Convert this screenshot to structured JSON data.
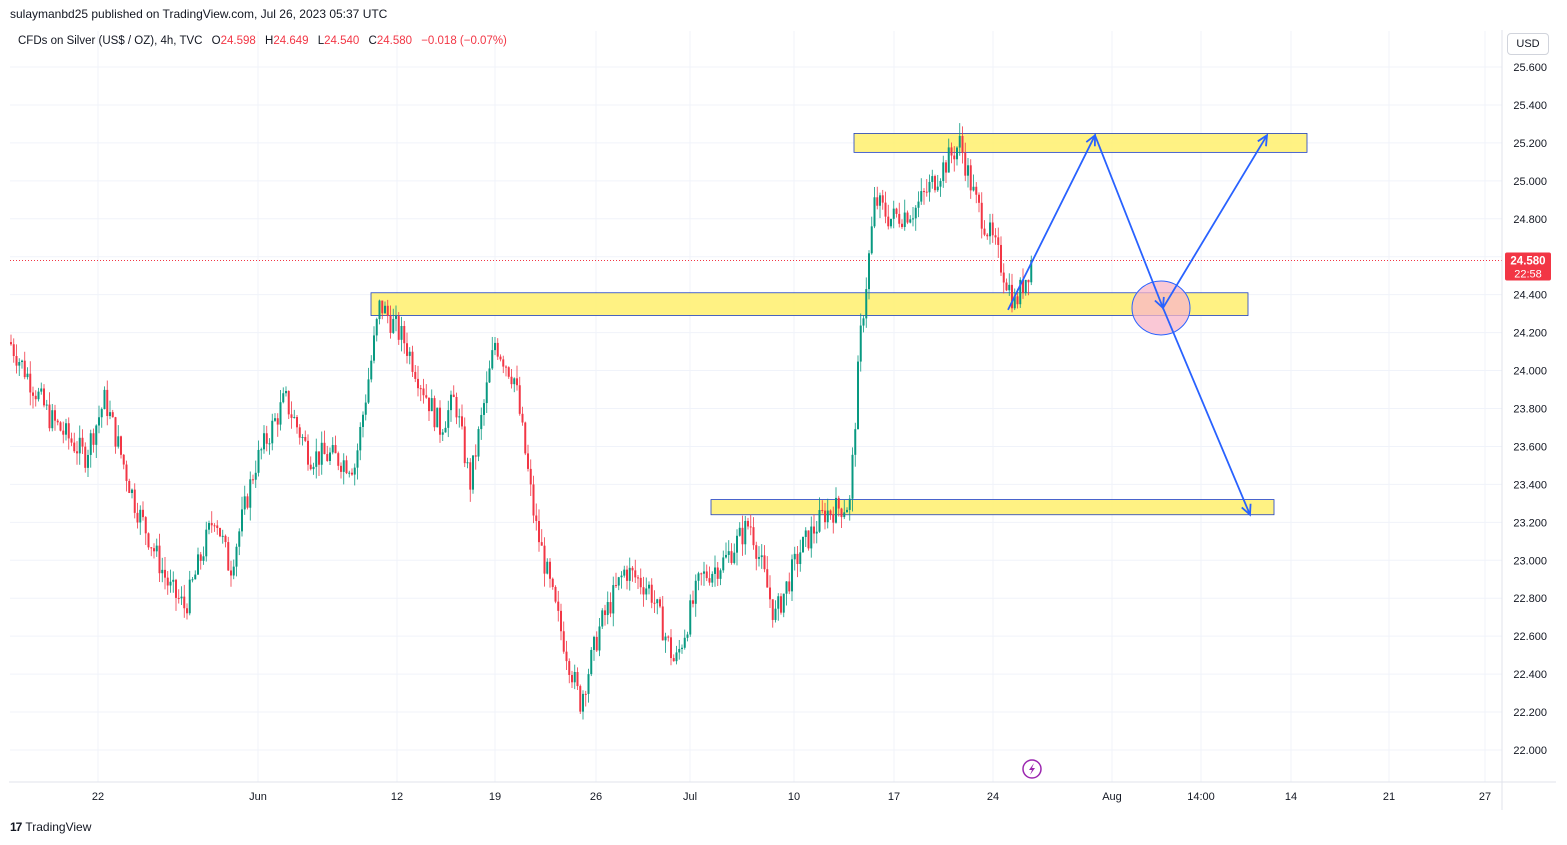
{
  "header": {
    "publisher_text": "sulaymanbd25 published on TradingView.com, Jul 26, 2023 05:37 UTC"
  },
  "legend": {
    "symbol": "CFDs on Silver (US$ / OZ), 4h, TVC",
    "open_label": "O",
    "open": "24.598",
    "high_label": "H",
    "high": "24.649",
    "low_label": "L",
    "low": "24.540",
    "close_label": "C",
    "close": "24.580",
    "change": "−0.018 (−0.07%)"
  },
  "toolbar": {
    "currency": "USD"
  },
  "price_badge": {
    "price": "24.580",
    "countdown": "22:58"
  },
  "footer": {
    "brand": "TradingView"
  },
  "colors": {
    "up": "#089981",
    "down": "#f23645",
    "zone_fill": "#fff176",
    "zone_border": "#1e3fc4",
    "arrow": "#2962ff",
    "ellipse_fill": "#f8b6c8"
  },
  "chart_data": {
    "type": "candlestick",
    "title": "CFDs on Silver (US$ / OZ), 4h, TVC",
    "interval": "4h",
    "y_axis": {
      "range": [
        21.85,
        25.75
      ],
      "ticks": [
        "25.600",
        "25.400",
        "25.200",
        "25.000",
        "24.800",
        "24.600",
        "24.400",
        "24.200",
        "24.000",
        "23.800",
        "23.600",
        "23.400",
        "23.200",
        "23.000",
        "22.800",
        "22.600",
        "22.400",
        "22.200",
        "22.000"
      ]
    },
    "x_axis": {
      "ticks": [
        "22",
        "Jun",
        "12",
        "19",
        "26",
        "Jul",
        "10",
        "17",
        "24",
        "Aug",
        "14:00",
        "14",
        "21",
        "27"
      ]
    },
    "grid": true,
    "current_price": 24.58,
    "price_path": [
      [
        0,
        24.15
      ],
      [
        40,
        23.75
      ],
      [
        75,
        23.55
      ],
      [
        95,
        23.85
      ],
      [
        125,
        23.3
      ],
      [
        160,
        22.85
      ],
      [
        175,
        22.75
      ],
      [
        205,
        23.25
      ],
      [
        220,
        22.95
      ],
      [
        245,
        23.5
      ],
      [
        275,
        23.85
      ],
      [
        300,
        23.55
      ],
      [
        320,
        23.55
      ],
      [
        345,
        23.5
      ],
      [
        370,
        24.35
      ],
      [
        395,
        24.15
      ],
      [
        410,
        23.95
      ],
      [
        430,
        23.7
      ],
      [
        445,
        23.85
      ],
      [
        460,
        23.4
      ],
      [
        485,
        24.15
      ],
      [
        505,
        23.95
      ],
      [
        525,
        23.2
      ],
      [
        545,
        22.75
      ],
      [
        570,
        22.25
      ],
      [
        590,
        22.65
      ],
      [
        615,
        22.95
      ],
      [
        640,
        22.85
      ],
      [
        665,
        22.45
      ],
      [
        690,
        22.9
      ],
      [
        715,
        23.0
      ],
      [
        740,
        23.2
      ],
      [
        765,
        22.7
      ],
      [
        790,
        23.05
      ],
      [
        815,
        23.25
      ],
      [
        840,
        23.3
      ],
      [
        850,
        24.15
      ],
      [
        865,
        24.9
      ],
      [
        880,
        24.8
      ],
      [
        905,
        24.85
      ],
      [
        930,
        25.05
      ],
      [
        950,
        25.2
      ],
      [
        965,
        24.9
      ],
      [
        985,
        24.65
      ],
      [
        1005,
        24.35
      ],
      [
        1020,
        24.55
      ],
      [
        1033,
        24.58
      ]
    ],
    "zones": [
      {
        "name": "resistance-zone",
        "price_top": 25.25,
        "price_bottom": 25.15,
        "x_start": 854,
        "x_end": 1307
      },
      {
        "name": "support-zone",
        "price_top": 24.41,
        "price_bottom": 24.29,
        "x_start": 371,
        "x_end": 1248
      },
      {
        "name": "lower-zone",
        "price_top": 23.32,
        "price_bottom": 23.24,
        "x_start": 711,
        "x_end": 1274
      }
    ],
    "projection_paths": [
      {
        "name": "bullish-path",
        "points": [
          [
            1008,
            24.32
          ],
          [
            1095,
            25.24
          ],
          [
            1163,
            24.33
          ],
          [
            1267,
            25.24
          ]
        ]
      },
      {
        "name": "bearish-path",
        "points": [
          [
            1163,
            24.33
          ],
          [
            1250,
            23.24
          ]
        ]
      }
    ],
    "highlight_circle": {
      "cx": 1161,
      "price": 24.33,
      "rx": 29,
      "ry": 27
    }
  }
}
